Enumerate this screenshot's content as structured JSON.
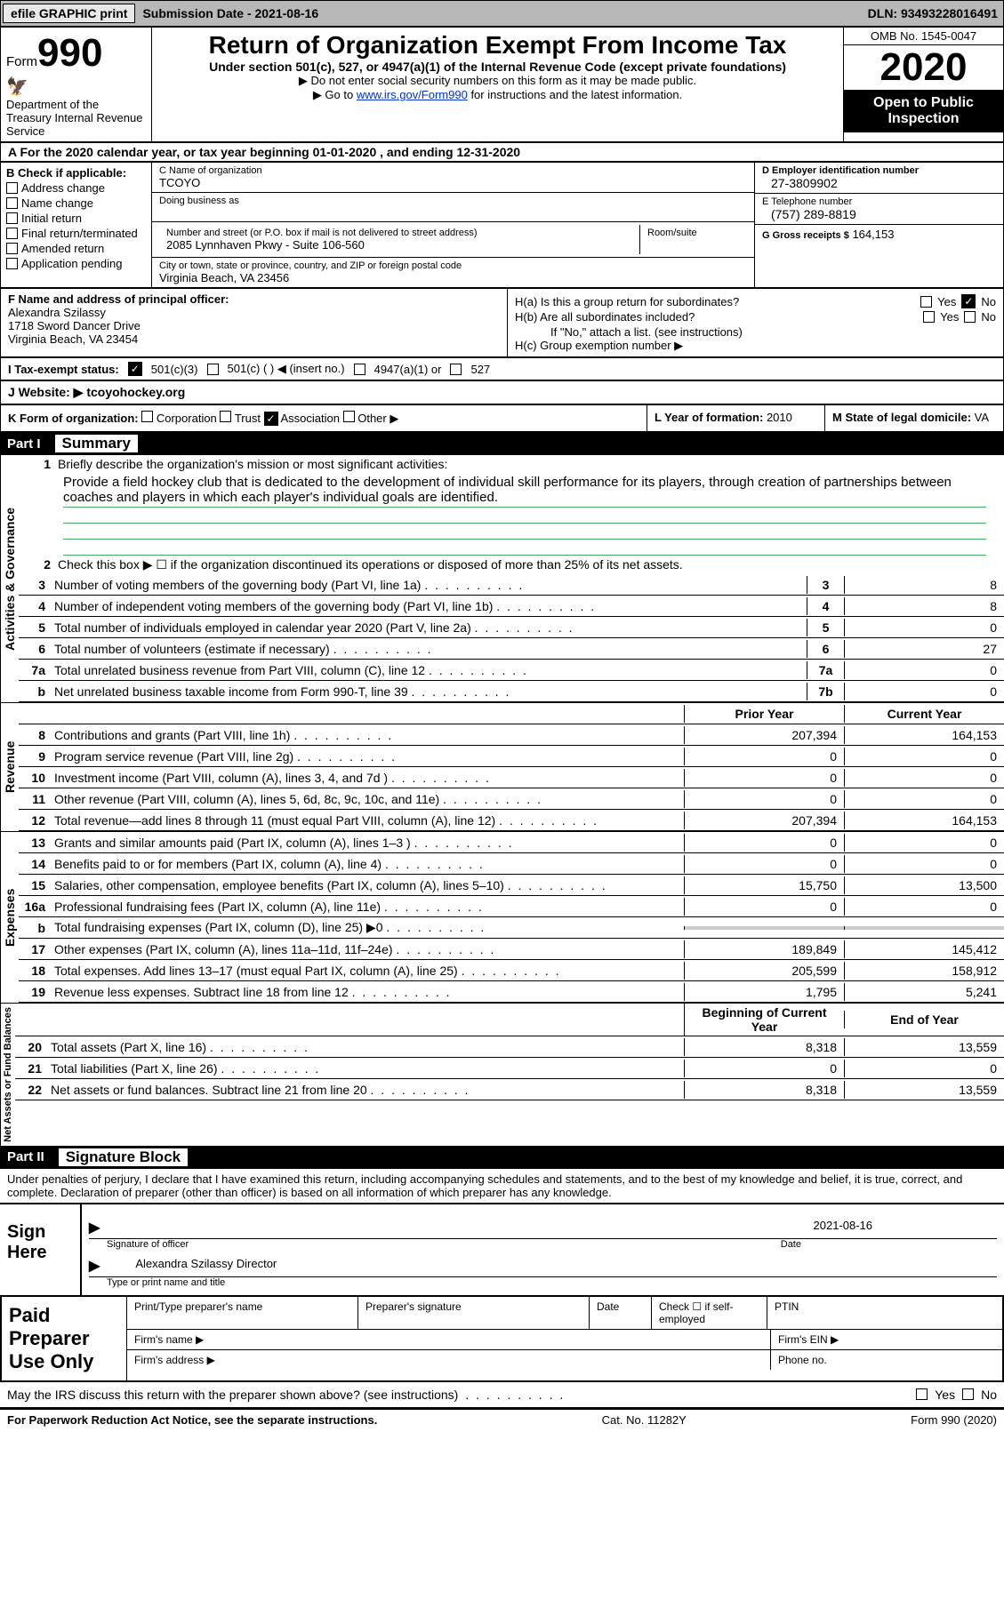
{
  "topbar": {
    "efile": "efile GRAPHIC print",
    "submission": "Submission Date - 2021-08-16",
    "dln": "DLN: 93493228016491"
  },
  "header": {
    "form": "Form",
    "num": "990",
    "dept": "Department of the Treasury Internal Revenue Service",
    "title": "Return of Organization Exempt From Income Tax",
    "sub": "Under section 501(c), 527, or 4947(a)(1) of the Internal Revenue Code (except private foundations)",
    "note1": "▶ Do not enter social security numbers on this form as it may be made public.",
    "note2_pre": "▶ Go to ",
    "note2_link": "www.irs.gov/Form990",
    "note2_post": " for instructions and the latest information.",
    "omb": "OMB No. 1545-0047",
    "year": "2020",
    "inspection": "Open to Public Inspection"
  },
  "rowA": "A For the 2020 calendar year, or tax year beginning 01-01-2020    , and ending 12-31-2020",
  "colB": {
    "title": "B Check if applicable:",
    "items": [
      "Address change",
      "Name change",
      "Initial return",
      "Final return/terminated",
      "Amended return",
      "Application pending"
    ]
  },
  "colC": {
    "name_label": "C Name of organization",
    "name": "TCOYO",
    "dba_label": "Doing business as",
    "addr_label": "Number and street (or P.O. box if mail is not delivered to street address)",
    "room_label": "Room/suite",
    "addr": "2085 Lynnhaven Pkwy - Suite 106-560",
    "city_label": "City or town, state or province, country, and ZIP or foreign postal code",
    "city": "Virginia Beach, VA  23456"
  },
  "colD": {
    "label": "D Employer identification number",
    "val": "27-3809902"
  },
  "colE": {
    "label": "E Telephone number",
    "val": "(757) 289-8819"
  },
  "colG": {
    "label": "G Gross receipts $",
    "val": "164,153"
  },
  "colF": {
    "label": "F  Name and address of principal officer:",
    "name": "Alexandra Szilassy",
    "addr1": "1718 Sword Dancer Drive",
    "addr2": "Virginia Beach, VA  23454"
  },
  "colH": {
    "a": "H(a)  Is this a group return for subordinates?",
    "b": "H(b)  Are all subordinates included?",
    "b_note": "If \"No,\" attach a list. (see instructions)",
    "c": "H(c)  Group exemption number ▶",
    "yes": "Yes",
    "no": "No"
  },
  "rowI": {
    "label": "I    Tax-exempt status:",
    "o1": "501(c)(3)",
    "o2": "501(c) (  ) ◀ (insert no.)",
    "o3": "4947(a)(1) or",
    "o4": "527"
  },
  "rowJ": {
    "label": "J   Website: ▶",
    "val": "tcoyohockey.org"
  },
  "rowK": {
    "label": "K Form of organization:",
    "o1": "Corporation",
    "o2": "Trust",
    "o3": "Association",
    "o4": "Other ▶"
  },
  "rowL": {
    "label": "L Year of formation:",
    "val": "2010"
  },
  "rowM": {
    "label": "M State of legal domicile:",
    "val": "VA"
  },
  "part1": {
    "label": "Part I",
    "title": "Summary"
  },
  "p1": {
    "l1": "Briefly describe the organization's mission or most significant activities:",
    "mission": "Provide a field hockey club that is dedicated to the development of individual skill performance for its players, through creation of partnerships between coaches and players in which each player's individual goals are identified.",
    "l2": "Check this box ▶ ☐  if the organization discontinued its operations or disposed of more than 25% of its net assets.",
    "governance_label": "Activities & Governance",
    "revenue_label": "Revenue",
    "expenses_label": "Expenses",
    "netassets_label": "Net Assets or Fund Balances"
  },
  "gov_lines": [
    {
      "n": "3",
      "t": "Number of voting members of the governing body (Part VI, line 1a)",
      "box": "3",
      "v": "8"
    },
    {
      "n": "4",
      "t": "Number of independent voting members of the governing body (Part VI, line 1b)",
      "box": "4",
      "v": "8"
    },
    {
      "n": "5",
      "t": "Total number of individuals employed in calendar year 2020 (Part V, line 2a)",
      "box": "5",
      "v": "0"
    },
    {
      "n": "6",
      "t": "Total number of volunteers (estimate if necessary)",
      "box": "6",
      "v": "27"
    },
    {
      "n": "7a",
      "t": "Total unrelated business revenue from Part VIII, column (C), line 12",
      "box": "7a",
      "v": "0"
    },
    {
      "n": "b",
      "t": "Net unrelated business taxable income from Form 990-T, line 39",
      "box": "7b",
      "v": "0"
    }
  ],
  "two_col_header": {
    "py": "Prior Year",
    "cy": "Current Year"
  },
  "rev_lines": [
    {
      "n": "8",
      "t": "Contributions and grants (Part VIII, line 1h)",
      "py": "207,394",
      "cy": "164,153"
    },
    {
      "n": "9",
      "t": "Program service revenue (Part VIII, line 2g)",
      "py": "0",
      "cy": "0"
    },
    {
      "n": "10",
      "t": "Investment income (Part VIII, column (A), lines 3, 4, and 7d )",
      "py": "0",
      "cy": "0"
    },
    {
      "n": "11",
      "t": "Other revenue (Part VIII, column (A), lines 5, 6d, 8c, 9c, 10c, and 11e)",
      "py": "0",
      "cy": "0"
    },
    {
      "n": "12",
      "t": "Total revenue—add lines 8 through 11 (must equal Part VIII, column (A), line 12)",
      "py": "207,394",
      "cy": "164,153"
    }
  ],
  "exp_lines": [
    {
      "n": "13",
      "t": "Grants and similar amounts paid (Part IX, column (A), lines 1–3 )",
      "py": "0",
      "cy": "0"
    },
    {
      "n": "14",
      "t": "Benefits paid to or for members (Part IX, column (A), line 4)",
      "py": "0",
      "cy": "0"
    },
    {
      "n": "15",
      "t": "Salaries, other compensation, employee benefits (Part IX, column (A), lines 5–10)",
      "py": "15,750",
      "cy": "13,500"
    },
    {
      "n": "16a",
      "t": "Professional fundraising fees (Part IX, column (A), line 11e)",
      "py": "0",
      "cy": "0"
    },
    {
      "n": "b",
      "t": "Total fundraising expenses (Part IX, column (D), line 25) ▶0",
      "py": "grey",
      "cy": "grey"
    },
    {
      "n": "17",
      "t": "Other expenses (Part IX, column (A), lines 11a–11d, 11f–24e)",
      "py": "189,849",
      "cy": "145,412"
    },
    {
      "n": "18",
      "t": "Total expenses. Add lines 13–17 (must equal Part IX, column (A), line 25)",
      "py": "205,599",
      "cy": "158,912"
    },
    {
      "n": "19",
      "t": "Revenue less expenses. Subtract line 18 from line 12",
      "py": "1,795",
      "cy": "5,241"
    }
  ],
  "na_header": {
    "py": "Beginning of Current Year",
    "cy": "End of Year"
  },
  "na_lines": [
    {
      "n": "20",
      "t": "Total assets (Part X, line 16)",
      "py": "8,318",
      "cy": "13,559"
    },
    {
      "n": "21",
      "t": "Total liabilities (Part X, line 26)",
      "py": "0",
      "cy": "0"
    },
    {
      "n": "22",
      "t": "Net assets or fund balances. Subtract line 21 from line 20",
      "py": "8,318",
      "cy": "13,559"
    }
  ],
  "part2": {
    "label": "Part II",
    "title": "Signature Block"
  },
  "penalties": "Under penalties of perjury, I declare that I have examined this return, including accompanying schedules and statements, and to the best of my knowledge and belief, it is true, correct, and complete. Declaration of preparer (other than officer) is based on all information of which preparer has any knowledge.",
  "sign": {
    "here": "Sign Here",
    "sig_label": "Signature of officer",
    "date": "2021-08-16",
    "date_label": "Date",
    "name": "Alexandra Szilassy Director",
    "name_label": "Type or print name and title"
  },
  "prep": {
    "label": "Paid Preparer Use Only",
    "c1": "Print/Type preparer's name",
    "c2": "Preparer's signature",
    "c3": "Date",
    "c4": "Check ☐ if self-employed",
    "c5": "PTIN",
    "firm_name": "Firm's name    ▶",
    "firm_ein": "Firm's EIN ▶",
    "firm_addr": "Firm's address ▶",
    "phone": "Phone no."
  },
  "discuss": "May the IRS discuss this return with the preparer shown above? (see instructions)",
  "footer": {
    "left": "For Paperwork Reduction Act Notice, see the separate instructions.",
    "mid": "Cat. No. 11282Y",
    "right": "Form 990 (2020)"
  }
}
